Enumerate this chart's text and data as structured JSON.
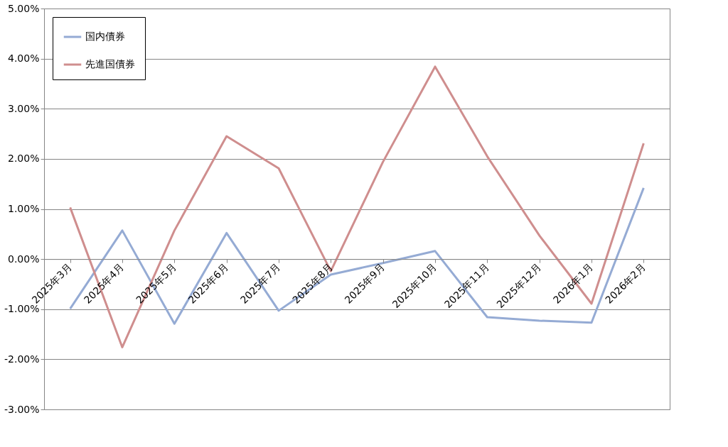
{
  "chart_data": {
    "type": "line",
    "categories": [
      "2025年3月",
      "2025年4月",
      "2025年5月",
      "2025年6月",
      "2025年7月",
      "2025年8月",
      "2025年9月",
      "2025年10月",
      "2025年11月",
      "2025年12月",
      "2026年1月",
      "2026年2月"
    ],
    "series": [
      {
        "name": "国内債券",
        "color": "#95abd4",
        "values": [
          -0.99,
          0.57,
          -1.29,
          0.52,
          -1.03,
          -0.31,
          -0.08,
          0.16,
          -1.16,
          -1.23,
          -1.27,
          1.42
        ]
      },
      {
        "name": "先進国債券",
        "color": "#cf8e8e",
        "values": [
          1.03,
          -1.76,
          0.57,
          2.45,
          1.81,
          -0.24,
          1.94,
          3.84,
          2.05,
          0.47,
          -0.89,
          2.31
        ]
      }
    ],
    "ylim": [
      -3,
      5
    ],
    "yticks": [
      {
        "value": -3,
        "label": "-3.00%"
      },
      {
        "value": -2,
        "label": "-2.00%"
      },
      {
        "value": -1,
        "label": "-1.00%"
      },
      {
        "value": 0,
        "label": "0.00%"
      },
      {
        "value": 1,
        "label": "1.00%"
      },
      {
        "value": 2,
        "label": "2.00%"
      },
      {
        "value": 3,
        "label": "3.00%"
      },
      {
        "value": 4,
        "label": "4.00%"
      },
      {
        "value": 5,
        "label": "5.00%"
      }
    ],
    "grid": "y",
    "legend": "top left",
    "marker": "none",
    "line_style": "solid"
  }
}
